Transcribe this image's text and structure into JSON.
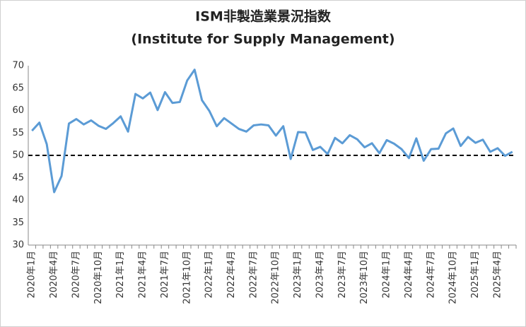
{
  "chart_data": {
    "type": "line",
    "title": "ISM非製造業景況指数",
    "subtitle": "(Institute for Supply Management)",
    "categories": [
      "2020年1月",
      null,
      null,
      "2020年4月",
      null,
      null,
      "2020年7月",
      null,
      null,
      "2020年10月",
      null,
      null,
      "2021年1月",
      null,
      null,
      "2021年4月",
      null,
      null,
      "2021年7月",
      null,
      null,
      "2021年10月",
      null,
      null,
      "2022年1月",
      null,
      null,
      "2022年4月",
      null,
      null,
      "2022年7月",
      null,
      null,
      "2022年10月",
      null,
      null,
      "2023年1月",
      null,
      null,
      "2023年4月",
      null,
      null,
      "2023年7月",
      null,
      null,
      "2023年10月",
      null,
      null,
      "2024年1月",
      null,
      null,
      "2024年4月",
      null,
      null,
      "2024年7月",
      null,
      null,
      "2024年10月",
      null,
      null,
      "2025年1月",
      null,
      null,
      "2025年4月",
      null,
      null
    ],
    "series": [
      {
        "color": "#5b9bd5",
        "values": [
          55.5,
          57.3,
          52.5,
          41.8,
          45.4,
          57.1,
          58.1,
          56.9,
          57.8,
          56.6,
          55.9,
          57.2,
          58.7,
          55.3,
          63.7,
          62.7,
          64.0,
          60.1,
          64.1,
          61.7,
          61.9,
          66.7,
          69.1,
          62.3,
          59.9,
          56.5,
          58.3,
          57.1,
          55.9,
          55.3,
          56.7,
          56.9,
          56.7,
          54.4,
          56.5,
          49.2,
          55.2,
          55.1,
          51.2,
          51.9,
          50.3,
          53.9,
          52.7,
          54.5,
          53.6,
          51.8,
          52.7,
          50.5,
          53.4,
          52.6,
          51.4,
          49.4,
          53.8,
          48.8,
          51.4,
          51.5,
          54.9,
          56.0,
          52.1,
          54.1,
          52.8,
          53.5,
          50.8,
          51.6,
          49.9,
          50.8
        ]
      }
    ],
    "ylim": [
      30,
      70
    ],
    "yticks": [
      30,
      35,
      40,
      45,
      50,
      55,
      60,
      65,
      70
    ],
    "hline": 50,
    "grid": false
  }
}
